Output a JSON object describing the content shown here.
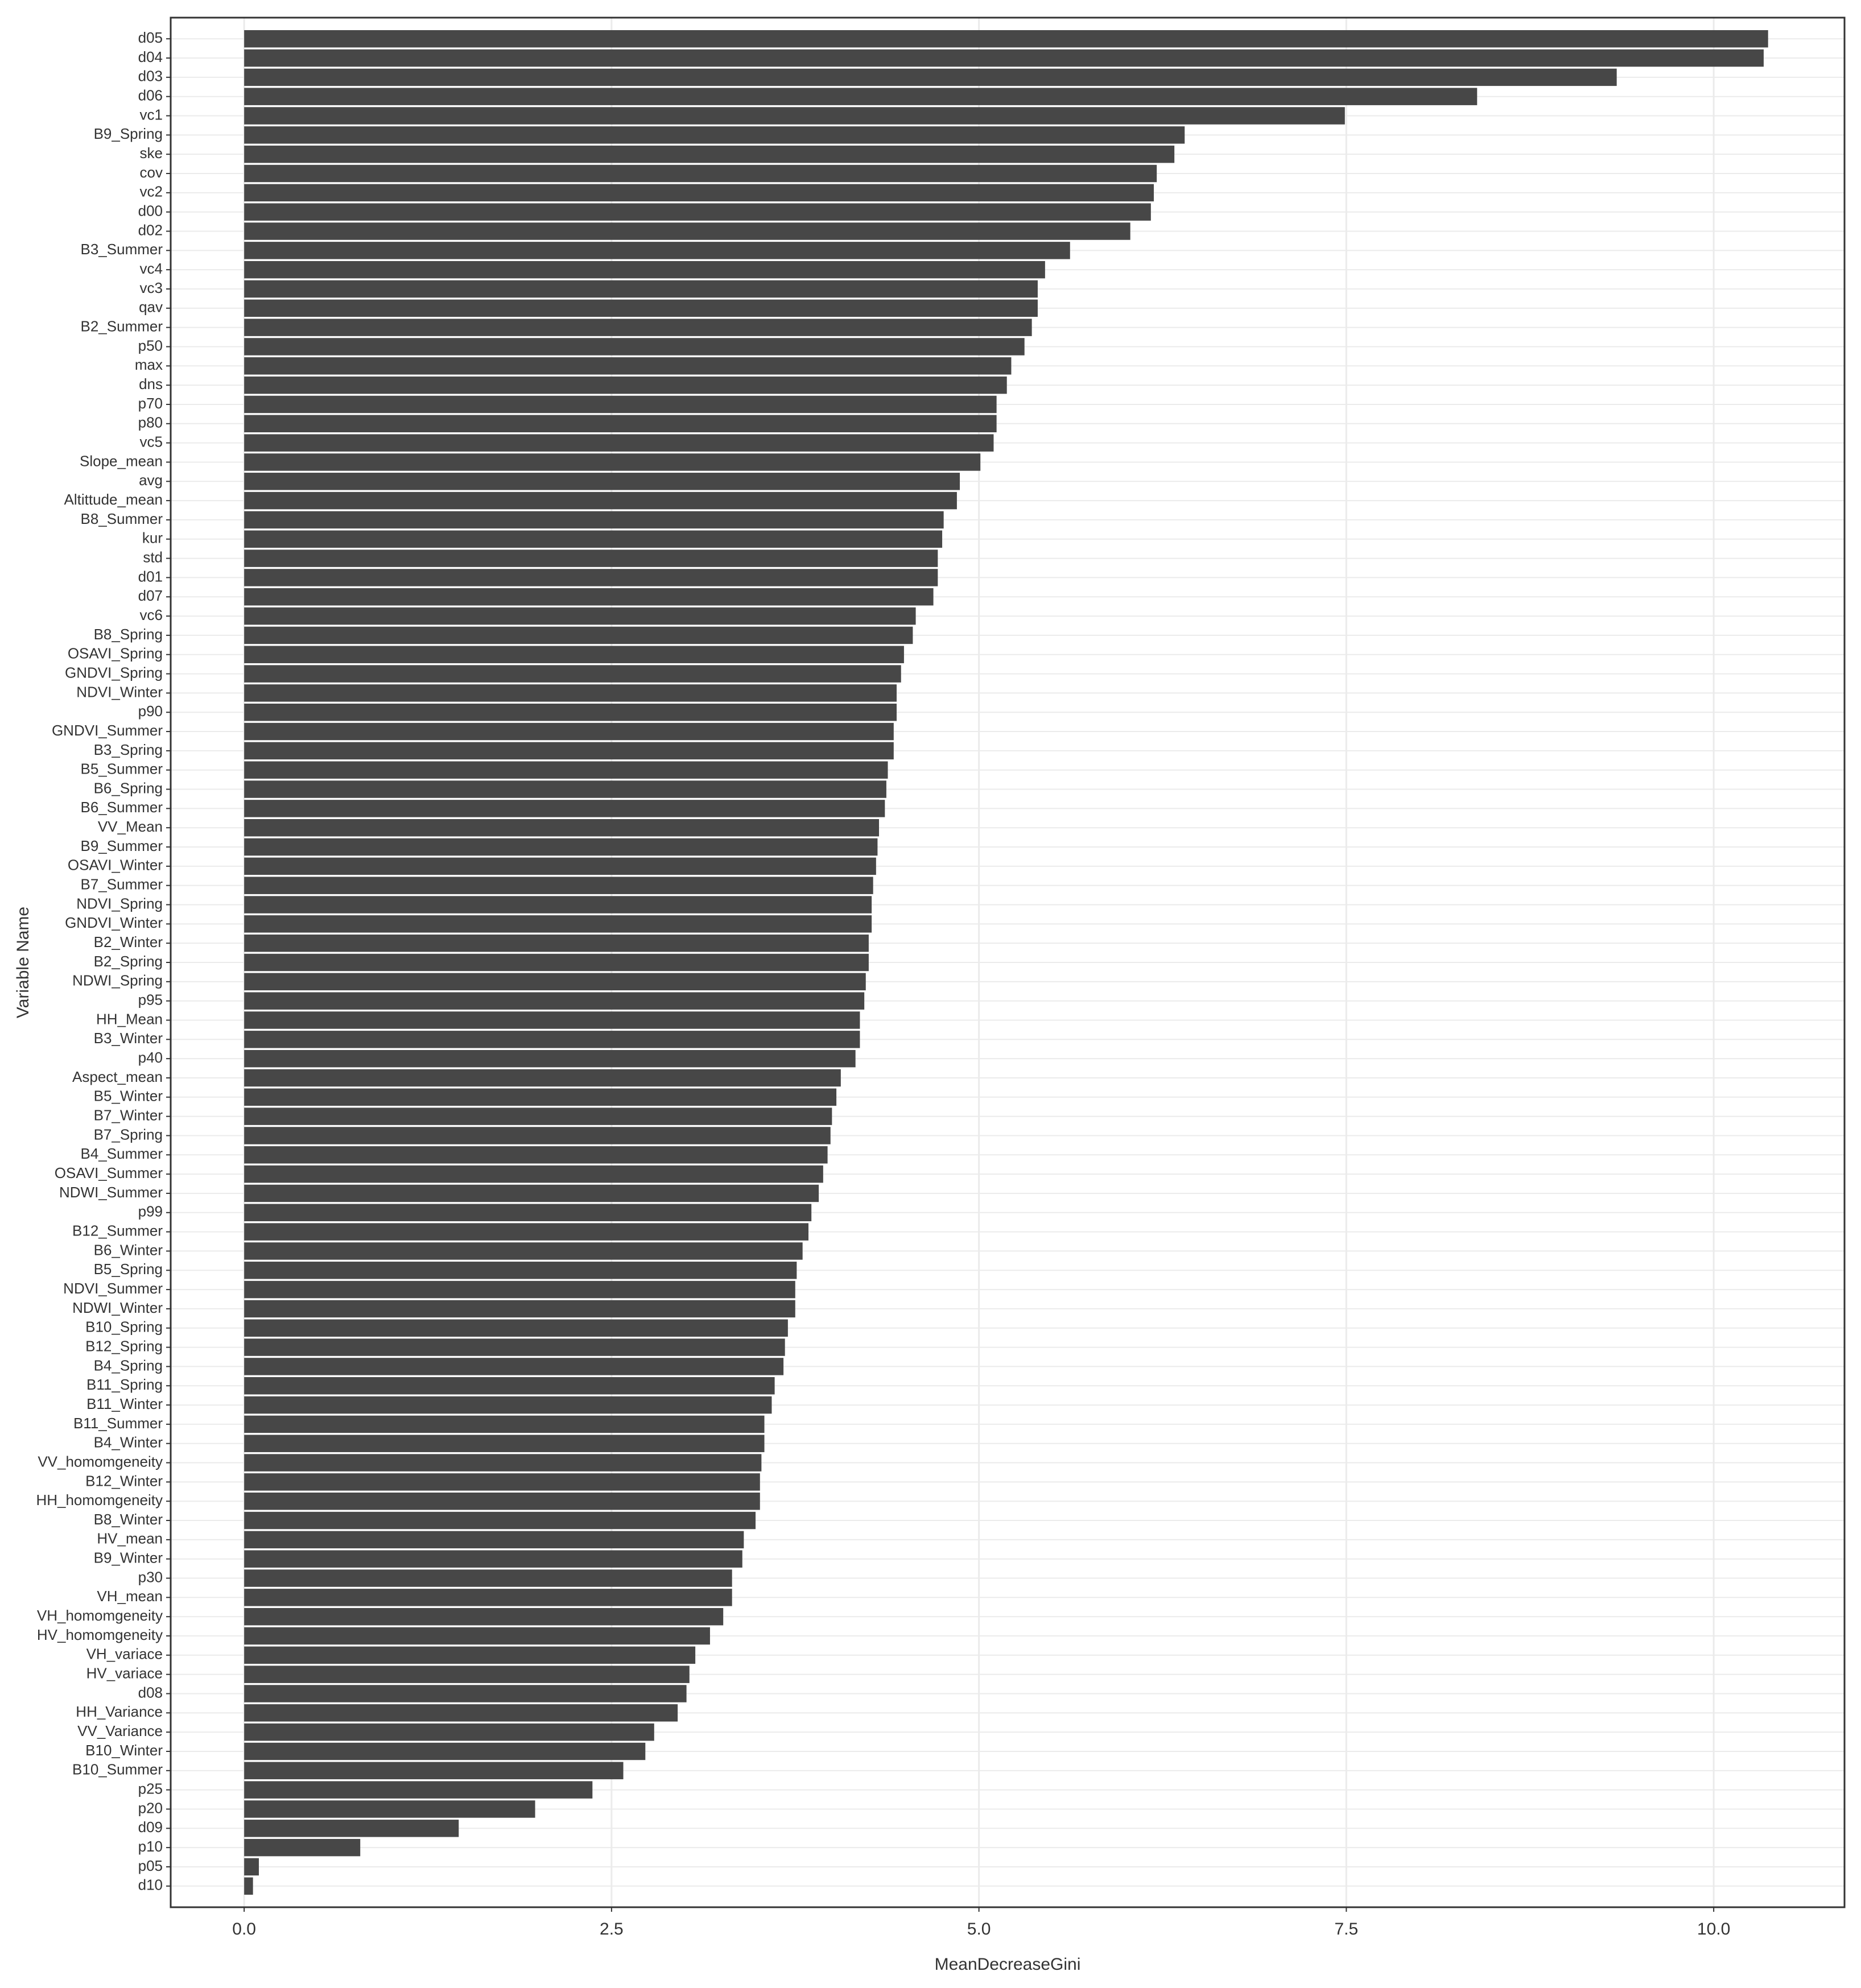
{
  "chart_data": {
    "type": "bar",
    "orientation": "horizontal",
    "x_label": "MeanDecreaseGini",
    "y_label": "Variable Name",
    "categories": [
      "d05",
      "d04",
      "d03",
      "d06",
      "vc1",
      "B9_Spring",
      "ske",
      "cov",
      "vc2",
      "d00",
      "d02",
      "B3_Summer",
      "vc4",
      "vc3",
      "qav",
      "B2_Summer",
      "p50",
      "max",
      "dns",
      "p70",
      "p80",
      "vc5",
      "Slope_mean",
      "avg",
      "Altittude_mean",
      "B8_Summer",
      "kur",
      "std",
      "d01",
      "d07",
      "vc6",
      "B8_Spring",
      "OSAVI_Spring",
      "GNDVI_Spring",
      "NDVI_Winter",
      "p90",
      "GNDVI_Summer",
      "B3_Spring",
      "B5_Summer",
      "B6_Spring",
      "B6_Summer",
      "VV_Mean",
      "B9_Summer",
      "OSAVI_Winter",
      "B7_Summer",
      "NDVI_Spring",
      "GNDVI_Winter",
      "B2_Winter",
      "B2_Spring",
      "NDWI_Spring",
      "p95",
      "HH_Mean",
      "B3_Winter",
      "p40",
      "Aspect_mean",
      "B5_Winter",
      "B7_Winter",
      "B7_Spring",
      "B4_Summer",
      "OSAVI_Summer",
      "NDWI_Summer",
      "p99",
      "B12_Summer",
      "B6_Winter",
      "B5_Spring",
      "NDVI_Summer",
      "NDWI_Winter",
      "B10_Spring",
      "B12_Spring",
      "B4_Spring",
      "B11_Spring",
      "B11_Winter",
      "B11_Summer",
      "B4_Winter",
      "VV_homomgeneity",
      "B12_Winter",
      "HH_homomgeneity",
      "B8_Winter",
      "HV_mean",
      "B9_Winter",
      "p30",
      "VH_mean",
      "VH_homomgeneity",
      "HV_homomgeneity",
      "VH_variace",
      "HV_variace",
      "d08",
      "HH_Variance",
      "VV_Variance",
      "B10_Winter",
      "B10_Summer",
      "p25",
      "p20",
      "d09",
      "p10",
      "p05",
      "d10"
    ],
    "values": [
      10.37,
      10.34,
      9.34,
      8.39,
      7.49,
      6.4,
      6.33,
      6.21,
      6.19,
      6.17,
      6.03,
      5.62,
      5.45,
      5.4,
      5.4,
      5.36,
      5.31,
      5.22,
      5.19,
      5.12,
      5.12,
      5.1,
      5.01,
      4.87,
      4.85,
      4.76,
      4.75,
      4.72,
      4.72,
      4.69,
      4.57,
      4.55,
      4.49,
      4.47,
      4.44,
      4.44,
      4.42,
      4.42,
      4.38,
      4.37,
      4.36,
      4.32,
      4.31,
      4.3,
      4.28,
      4.27,
      4.27,
      4.25,
      4.25,
      4.23,
      4.22,
      4.19,
      4.19,
      4.16,
      4.06,
      4.03,
      4.0,
      3.99,
      3.97,
      3.94,
      3.91,
      3.86,
      3.84,
      3.8,
      3.76,
      3.75,
      3.75,
      3.7,
      3.68,
      3.67,
      3.61,
      3.59,
      3.54,
      3.54,
      3.52,
      3.51,
      3.51,
      3.48,
      3.4,
      3.39,
      3.32,
      3.32,
      3.26,
      3.17,
      3.07,
      3.03,
      3.01,
      2.95,
      2.79,
      2.73,
      2.58,
      2.37,
      1.98,
      1.46,
      0.79,
      0.1,
      0.06
    ],
    "color": "#474747",
    "xlim": [
      -0.5,
      10.89
    ],
    "xticks": [
      {
        "value": 0,
        "label": "0.0"
      },
      2.5,
      {
        "value": 5,
        "label": "5.0"
      },
      7.5,
      {
        "value": 10,
        "label": "10.0"
      }
    ],
    "grid": true
  }
}
